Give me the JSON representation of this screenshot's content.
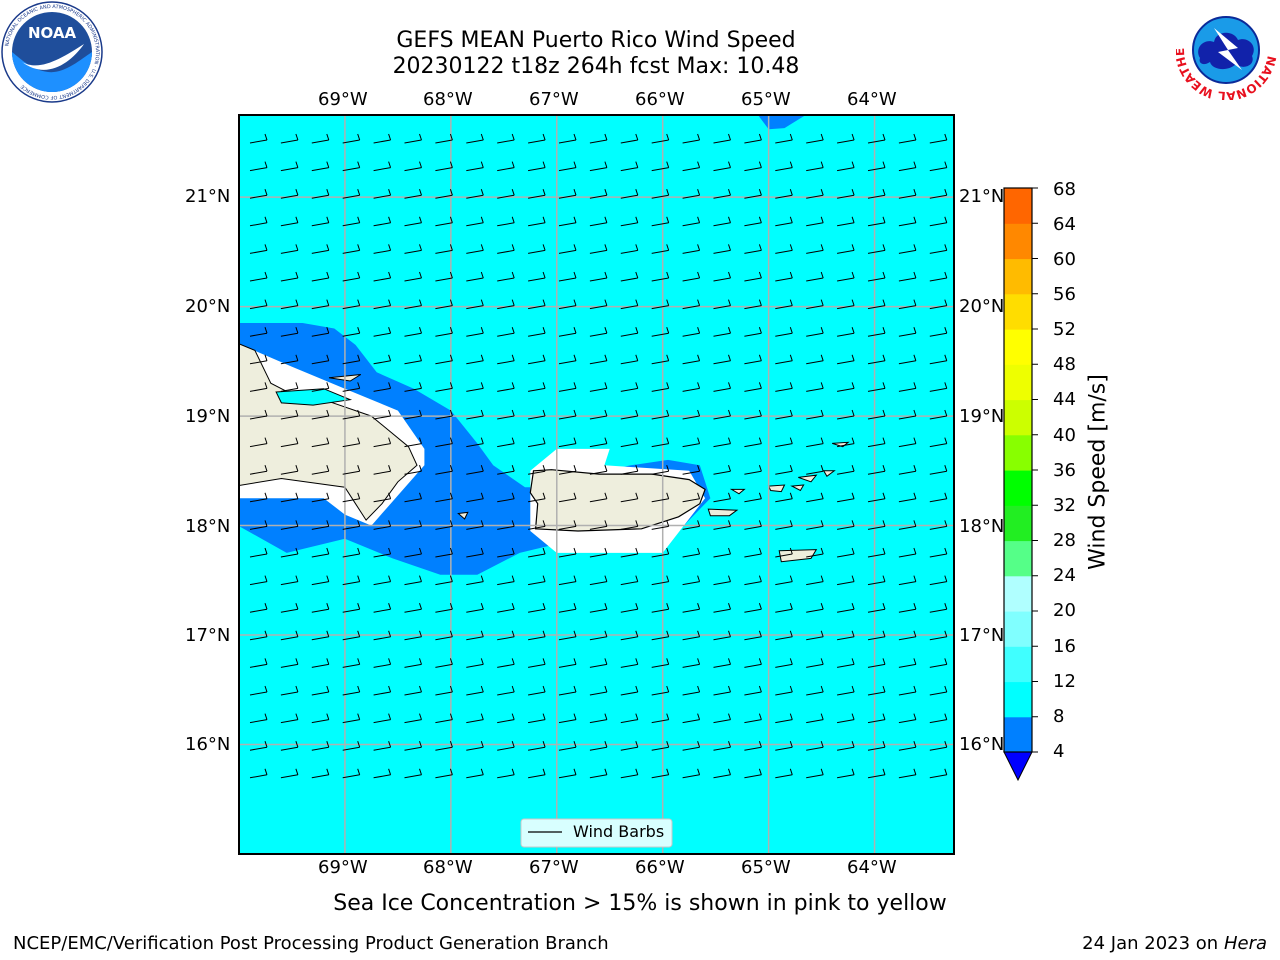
{
  "header": {
    "title_line1": "GEFS MEAN Puerto Rico Wind Speed",
    "title_line2": "20230122 t18z 264h fcst   Max: 10.48",
    "left_logo": "noaa-logo",
    "right_logo": "national-weather-service-logo",
    "left_logo_text": "NOAA",
    "left_logo_ring_text": "NATIONAL OCEANIC AND ATMOSPHERIC ADMINISTRATION · U.S. DEPARTMENT OF COMMERCE",
    "right_logo_ring_text": "NATIONAL WEATHER SERVICE"
  },
  "map": {
    "lon_range": [
      -70.0,
      -63.25
    ],
    "lat_range": [
      15.0,
      21.75
    ],
    "lon_ticks": [
      "69°W",
      "68°W",
      "67°W",
      "66°W",
      "65°W",
      "64°W"
    ],
    "lat_ticks": [
      "21°N",
      "20°N",
      "19°N",
      "18°N",
      "17°N",
      "16°N"
    ],
    "ocean_color": "#00ffff",
    "low_wind_color": "#0080ff",
    "land_color": "#eeeedd",
    "gridlines": true,
    "legend": {
      "label": "Wind Barbs",
      "placement": "bottom-center"
    }
  },
  "colorbar": {
    "label": "Wind Speed [m/s]",
    "ticks": [
      "68",
      "64",
      "60",
      "56",
      "52",
      "48",
      "44",
      "40",
      "36",
      "32",
      "28",
      "24",
      "20",
      "16",
      "12",
      "8",
      "4"
    ],
    "colors": [
      "#0000ff",
      "#0080ff",
      "#00ffff",
      "#40ffff",
      "#80ffff",
      "#b0ffff",
      "#55ff88",
      "#22ee22",
      "#00ff00",
      "#88ff00",
      "#ccff00",
      "#eeff00",
      "#ffff00",
      "#ffdd00",
      "#ffbb00",
      "#ff8800",
      "#ff6600",
      "#ff4400",
      "#ff2200",
      "#ff0000"
    ],
    "extend": "min"
  },
  "footer": {
    "subtitle": "Sea Ice Concentration > 15% is shown in pink to yellow",
    "left": "NCEP/EMC/Verification Post Processing Product Generation Branch",
    "right_prefix": "24 Jan 2023 on ",
    "right_machine": "Hera"
  }
}
